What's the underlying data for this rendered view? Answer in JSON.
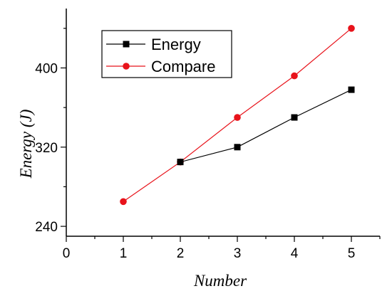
{
  "chart_data": {
    "type": "line",
    "xlabel": "Number",
    "ylabel": "Energy (J)",
    "xlim": [
      0,
      5.5
    ],
    "ylim": [
      230,
      460
    ],
    "xticks": [
      0,
      1,
      2,
      3,
      4,
      5
    ],
    "yticks": [
      240,
      320,
      400
    ],
    "grid": false,
    "legend_position": "top-left",
    "series": [
      {
        "name": "Energy",
        "color": "#000000",
        "marker": "square",
        "x": [
          2,
          3,
          4,
          5
        ],
        "y": [
          305,
          320,
          350,
          378
        ]
      },
      {
        "name": "Compare",
        "color": "#e8131b",
        "marker": "circle",
        "x": [
          1,
          2,
          3,
          4,
          5
        ],
        "y": [
          265,
          305,
          350,
          392,
          440
        ]
      }
    ]
  }
}
